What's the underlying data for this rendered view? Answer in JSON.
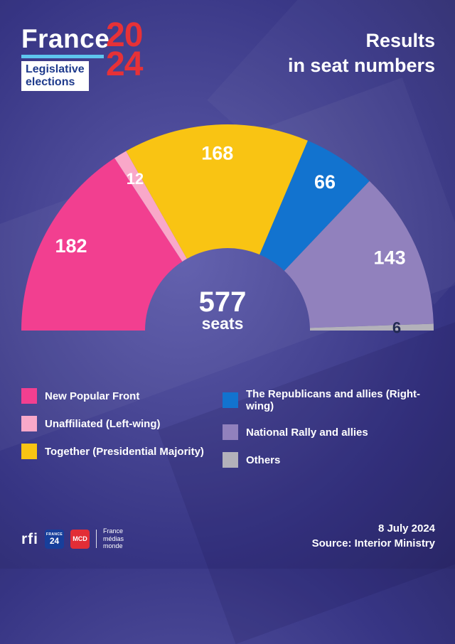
{
  "header": {
    "brand": "France",
    "year_line1": "20",
    "year_line2": "24",
    "subtitle_line1": "Legislative",
    "subtitle_line2": "elections",
    "title_line1": "Results",
    "title_line2": "in seat numbers"
  },
  "chart_data": {
    "type": "pie",
    "shape": "half-donut",
    "title": "Results in seat numbers",
    "total": 577,
    "center_label": "577",
    "center_sublabel": "seats",
    "legend_position": "bottom",
    "series": [
      {
        "name": "New Popular Front",
        "value": 182,
        "color": "#f23f90",
        "label_color": "#ffffff"
      },
      {
        "name": "Unaffiliated (Left-wing)",
        "value": 12,
        "color": "#f9a8c9",
        "label_color": "#ffffff"
      },
      {
        "name": "Together (Presidential Majority)",
        "value": 168,
        "color": "#f9c413",
        "label_color": "#ffffff"
      },
      {
        "name": "The Republicans and allies (Right-wing)",
        "value": 66,
        "color": "#1273cf",
        "label_color": "#ffffff"
      },
      {
        "name": "National Rally and allies",
        "value": 143,
        "color": "#9181bd",
        "label_color": "#ffffff"
      },
      {
        "name": "Others",
        "value": 6,
        "color": "#b3b1ba",
        "label_color": "#222a52"
      }
    ]
  },
  "footer": {
    "logo_rfi": "rfi",
    "logo_france24_word": "FRANCE",
    "logo_france24_num": "24",
    "logo_mcd": "MCD",
    "logo_fmm_line1": "France",
    "logo_fmm_line2": "médias",
    "logo_fmm_line3": "monde",
    "date": "8 July 2024",
    "source": "Source: Interior Ministry"
  },
  "theme": {
    "accent_cyan": "#5ec5ee",
    "brand_red": "#e73137",
    "subtitle_blue": "#1e3a8c",
    "france24_blue": "#173f9b",
    "mcd_red": "#e22d36",
    "text": "#ffffff"
  }
}
